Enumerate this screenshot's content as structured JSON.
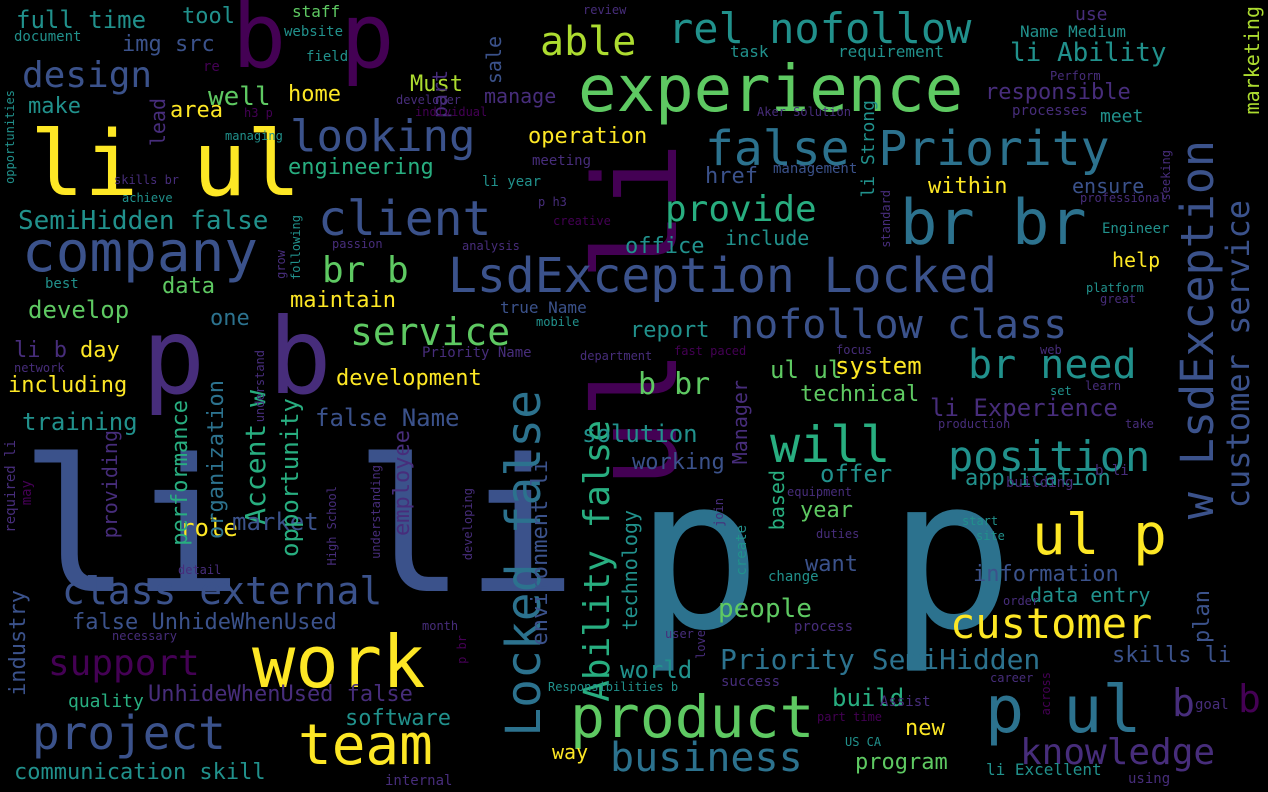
{
  "colors": {
    "background": "#000000",
    "palette": [
      "#440154",
      "#472d7b",
      "#3b528b",
      "#2c728e",
      "#21918c",
      "#28ae80",
      "#5ec962",
      "#addc30",
      "#fde725"
    ]
  },
  "words": [
    {
      "t": "p p",
      "c": "#2c728e"
    },
    {
      "t": "li li",
      "c": "#3b528b"
    },
    {
      "t": "li ul",
      "c": "#fde725"
    },
    {
      "t": "b p",
      "c": "#440154"
    },
    {
      "t": "p b",
      "c": "#472d7b"
    },
    {
      "t": "ul li",
      "c": "#440154"
    },
    {
      "t": "experience",
      "c": "#5ec962"
    },
    {
      "t": "br br",
      "c": "#2c728e"
    },
    {
      "t": "work",
      "c": "#fde725"
    },
    {
      "t": "product",
      "c": "#5ec962"
    },
    {
      "t": "p ul",
      "c": "#2c728e"
    },
    {
      "t": "ul p",
      "c": "#fde725"
    },
    {
      "t": "team",
      "c": "#fde725"
    },
    {
      "t": "LsdException Locked",
      "c": "#3b528b"
    },
    {
      "t": "w LsdException",
      "c": "#3b528b"
    },
    {
      "t": "Locked false",
      "c": "#2c728e"
    },
    {
      "t": "company",
      "c": "#3b528b"
    },
    {
      "t": "client",
      "c": "#3b528b"
    },
    {
      "t": "false Priority",
      "c": "#2c728e"
    },
    {
      "t": "rel nofollow",
      "c": "#21918c"
    },
    {
      "t": "nofollow class",
      "c": "#3b528b"
    },
    {
      "t": "class external",
      "c": "#3b528b"
    },
    {
      "t": "customer",
      "c": "#fde725"
    },
    {
      "t": "position",
      "c": "#21918c"
    },
    {
      "t": "will",
      "c": "#28ae80"
    },
    {
      "t": "looking",
      "c": "#3b528b"
    },
    {
      "t": "project",
      "c": "#3b528b"
    },
    {
      "t": "business",
      "c": "#2c728e"
    },
    {
      "t": "knowledge",
      "c": "#472d7b"
    },
    {
      "t": "customer service",
      "c": "#3b528b"
    },
    {
      "t": "Ability false",
      "c": "#28ae80"
    },
    {
      "t": "design",
      "c": "#3b528b"
    },
    {
      "t": "support",
      "c": "#440154"
    },
    {
      "t": "provide",
      "c": "#28ae80"
    },
    {
      "t": "able",
      "c": "#addc30"
    },
    {
      "t": "br need",
      "c": "#21918c"
    },
    {
      "t": "service",
      "c": "#5ec962"
    },
    {
      "t": "br b",
      "c": "#5ec962"
    },
    {
      "t": "b br",
      "c": "#5ec962"
    },
    {
      "t": "b",
      "c": "#472d7b"
    },
    {
      "t": "b",
      "c": "#440154"
    },
    {
      "t": "Priority SemiHidden",
      "c": "#2c728e"
    },
    {
      "t": "SemiHidden false",
      "c": "#21918c"
    },
    {
      "t": "Accent w",
      "c": "#28ae80"
    },
    {
      "t": "li Ability",
      "c": "#21918c"
    },
    {
      "t": "full time",
      "c": "#21918c"
    },
    {
      "t": "img src",
      "c": "#3b528b"
    },
    {
      "t": "tool",
      "c": "#21918c"
    },
    {
      "t": "Must",
      "c": "#addc30"
    },
    {
      "t": "home",
      "c": "#fde725"
    },
    {
      "t": "well",
      "c": "#5ec962"
    },
    {
      "t": "make",
      "c": "#21918c"
    },
    {
      "t": "area",
      "c": "#fde725"
    },
    {
      "t": "lead",
      "c": "#472d7b"
    },
    {
      "t": "manage",
      "c": "#472d7b"
    },
    {
      "t": "operation",
      "c": "#fde725"
    },
    {
      "t": "engineering",
      "c": "#28ae80"
    },
    {
      "t": "responsible",
      "c": "#472d7b"
    },
    {
      "t": "meet",
      "c": "#21918c"
    },
    {
      "t": "use",
      "c": "#472d7b"
    },
    {
      "t": "marketing",
      "c": "#addc30"
    },
    {
      "t": "li Strong",
      "c": "#21918c"
    },
    {
      "t": "href",
      "c": "#3b528b"
    },
    {
      "t": "within",
      "c": "#fde725"
    },
    {
      "t": "ensure",
      "c": "#3b528b"
    },
    {
      "t": "office",
      "c": "#21918c"
    },
    {
      "t": "include",
      "c": "#21918c"
    },
    {
      "t": "help",
      "c": "#fde725"
    },
    {
      "t": "data",
      "c": "#5ec962"
    },
    {
      "t": "maintain",
      "c": "#fde725"
    },
    {
      "t": "develop",
      "c": "#5ec962"
    },
    {
      "t": "one",
      "c": "#2c728e"
    },
    {
      "t": "li b",
      "c": "#472d7b"
    },
    {
      "t": "day",
      "c": "#fde725"
    },
    {
      "t": "including",
      "c": "#fde725"
    },
    {
      "t": "training",
      "c": "#21918c"
    },
    {
      "t": "development",
      "c": "#fde725"
    },
    {
      "t": "report",
      "c": "#21918c"
    },
    {
      "t": "system",
      "c": "#fde725"
    },
    {
      "t": "technical",
      "c": "#5ec962"
    },
    {
      "t": "ul ul",
      "c": "#5ec962"
    },
    {
      "t": "li Experience",
      "c": "#472d7b"
    },
    {
      "t": "false Name",
      "c": "#3b528b"
    },
    {
      "t": "solution",
      "c": "#21918c"
    },
    {
      "t": "working",
      "c": "#3b528b"
    },
    {
      "t": "offer",
      "c": "#21918c"
    },
    {
      "t": "application",
      "c": "#21918c"
    },
    {
      "t": "information",
      "c": "#3b528b"
    },
    {
      "t": "data entry",
      "c": "#21918c"
    },
    {
      "t": "year",
      "c": "#5ec962"
    },
    {
      "t": "want",
      "c": "#3b528b"
    },
    {
      "t": "people",
      "c": "#5ec962"
    },
    {
      "t": "world",
      "c": "#21918c"
    },
    {
      "t": "skills li",
      "c": "#3b528b"
    },
    {
      "t": "build",
      "c": "#28ae80"
    },
    {
      "t": "new",
      "c": "#fde725"
    },
    {
      "t": "program",
      "c": "#5ec962"
    },
    {
      "t": "software",
      "c": "#21918c"
    },
    {
      "t": "way",
      "c": "#fde725"
    },
    {
      "t": "communication skill",
      "c": "#21918c"
    },
    {
      "t": "quality",
      "c": "#28ae80"
    },
    {
      "t": "UnhideWhenUsed false",
      "c": "#472d7b"
    },
    {
      "t": "false UnhideWhenUsed",
      "c": "#3b528b"
    },
    {
      "t": "li Excellent",
      "c": "#21918c"
    },
    {
      "t": "role",
      "c": "#fde725"
    },
    {
      "t": "market",
      "c": "#3b528b"
    },
    {
      "t": "performance",
      "c": "#28ae80"
    },
    {
      "t": "organization",
      "c": "#2c728e"
    },
    {
      "t": "opportunity",
      "c": "#28ae80"
    },
    {
      "t": "employee",
      "c": "#472d7b"
    },
    {
      "t": "environment li",
      "c": "#3b528b"
    },
    {
      "t": "industry",
      "c": "#3b528b"
    },
    {
      "t": "providing",
      "c": "#472d7b"
    },
    {
      "t": "technology",
      "c": "#21918c"
    },
    {
      "t": "Manager",
      "c": "#472d7b"
    },
    {
      "t": "based",
      "c": "#28ae80"
    },
    {
      "t": "plan",
      "c": "#3b528b"
    },
    {
      "t": "part",
      "c": "#472d7b"
    },
    {
      "t": "sale",
      "c": "#3b528b"
    },
    {
      "t": "staff",
      "c": "#5ec962"
    },
    {
      "t": "document",
      "c": "#21918c"
    },
    {
      "t": "website",
      "c": "#21918c"
    },
    {
      "t": "field",
      "c": "#21918c"
    },
    {
      "t": "review",
      "c": "#472d7b"
    },
    {
      "t": "task",
      "c": "#21918c"
    },
    {
      "t": "Name Medium",
      "c": "#21918c"
    },
    {
      "t": "requirement",
      "c": "#21918c"
    },
    {
      "t": "Perform",
      "c": "#472d7b"
    },
    {
      "t": "processes",
      "c": "#472d7b"
    },
    {
      "t": "developer",
      "c": "#472d7b"
    },
    {
      "t": "individual",
      "c": "#440154"
    },
    {
      "t": "managing",
      "c": "#21918c"
    },
    {
      "t": "Aker Solution",
      "c": "#472d7b"
    },
    {
      "t": "management",
      "c": "#3b528b"
    },
    {
      "t": "meeting",
      "c": "#472d7b"
    },
    {
      "t": "li year",
      "c": "#21918c"
    },
    {
      "t": "skills br",
      "c": "#472d7b"
    },
    {
      "t": "achieve",
      "c": "#21918c"
    },
    {
      "t": "p h3",
      "c": "#472d7b"
    },
    {
      "t": "creative",
      "c": "#440154"
    },
    {
      "t": "professional",
      "c": "#472d7b"
    },
    {
      "t": "seeking",
      "c": "#472d7b"
    },
    {
      "t": "standard",
      "c": "#472d7b"
    },
    {
      "t": "Engineer",
      "c": "#21918c"
    },
    {
      "t": "platform",
      "c": "#21918c"
    },
    {
      "t": "great",
      "c": "#472d7b"
    },
    {
      "t": "passion",
      "c": "#472d7b"
    },
    {
      "t": "analysis",
      "c": "#472d7b"
    },
    {
      "t": "grow",
      "c": "#472d7b"
    },
    {
      "t": "following",
      "c": "#21918c"
    },
    {
      "t": "best",
      "c": "#21918c"
    },
    {
      "t": "true Name",
      "c": "#3b528b"
    },
    {
      "t": "mobile",
      "c": "#21918c"
    },
    {
      "t": "department",
      "c": "#472d7b"
    },
    {
      "t": "Priority Name",
      "c": "#472d7b"
    },
    {
      "t": "fast paced",
      "c": "#440154"
    },
    {
      "t": "focus",
      "c": "#472d7b"
    },
    {
      "t": "web",
      "c": "#472d7b"
    },
    {
      "t": "set",
      "c": "#21918c"
    },
    {
      "t": "learn",
      "c": "#472d7b"
    },
    {
      "t": "take",
      "c": "#472d7b"
    },
    {
      "t": "production",
      "c": "#472d7b"
    },
    {
      "t": "network",
      "c": "#472d7b"
    },
    {
      "t": "understand",
      "c": "#472d7b"
    },
    {
      "t": "b li",
      "c": "#472d7b"
    },
    {
      "t": "building",
      "c": "#472d7b"
    },
    {
      "t": "start",
      "c": "#21918c"
    },
    {
      "t": "site",
      "c": "#21918c"
    },
    {
      "t": "equipment",
      "c": "#472d7b"
    },
    {
      "t": "duties",
      "c": "#472d7b"
    },
    {
      "t": "join",
      "c": "#472d7b"
    },
    {
      "t": "create",
      "c": "#21918c"
    },
    {
      "t": "change",
      "c": "#21918c"
    },
    {
      "t": "order",
      "c": "#472d7b"
    },
    {
      "t": "user",
      "c": "#472d7b"
    },
    {
      "t": "process",
      "c": "#472d7b"
    },
    {
      "t": "love",
      "c": "#472d7b"
    },
    {
      "t": "month",
      "c": "#472d7b"
    },
    {
      "t": "necessary",
      "c": "#472d7b"
    },
    {
      "t": "p br",
      "c": "#440154"
    },
    {
      "t": "Responsibilities b",
      "c": "#21918c"
    },
    {
      "t": "success",
      "c": "#472d7b"
    },
    {
      "t": "part time",
      "c": "#440154"
    },
    {
      "t": "Assist",
      "c": "#472d7b"
    },
    {
      "t": "goal",
      "c": "#472d7b"
    },
    {
      "t": "US CA",
      "c": "#21918c"
    },
    {
      "t": "internal",
      "c": "#472d7b"
    },
    {
      "t": "using",
      "c": "#472d7b"
    },
    {
      "t": "career",
      "c": "#472d7b"
    },
    {
      "t": "across",
      "c": "#440154"
    },
    {
      "t": "detail",
      "c": "#472d7b"
    },
    {
      "t": "required li",
      "c": "#472d7b"
    },
    {
      "t": "may",
      "c": "#440154"
    },
    {
      "t": "High School",
      "c": "#472d7b"
    },
    {
      "t": "understanding",
      "c": "#472d7b"
    },
    {
      "t": "developing",
      "c": "#472d7b"
    },
    {
      "t": "opportunities",
      "c": "#21918c"
    },
    {
      "t": "h3 p",
      "c": "#440154"
    },
    {
      "t": "re",
      "c": "#440154"
    }
  ]
}
